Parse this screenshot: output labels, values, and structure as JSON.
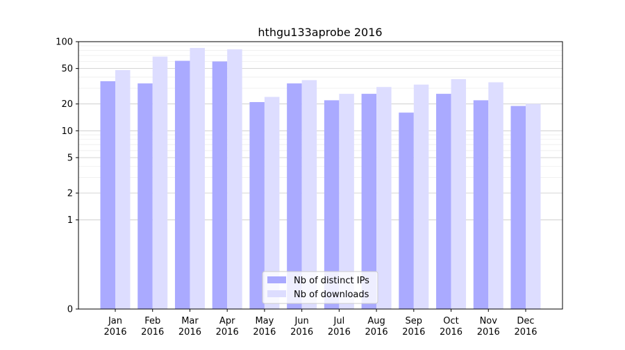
{
  "chart_data": {
    "type": "bar",
    "title": "hthgu133aprobe 2016",
    "xlabel": "",
    "ylabel": "",
    "y_scale": "symlog",
    "ylim": [
      0,
      100
    ],
    "y_ticks": [
      0,
      1,
      2,
      5,
      10,
      20,
      50,
      100
    ],
    "y_tick_labels": [
      "0",
      "1",
      "2",
      "5",
      "10",
      "20",
      "50",
      "100"
    ],
    "grid": "horizontal",
    "legend_position": "bottom-center",
    "categories": [
      "Jan\n2016",
      "Feb\n2016",
      "Mar\n2016",
      "Apr\n2016",
      "May\n2016",
      "Jun\n2016",
      "Jul\n2016",
      "Aug\n2016",
      "Sep\n2016",
      "Oct\n2016",
      "Nov\n2016",
      "Dec\n2016"
    ],
    "series": [
      {
        "name": "Nb of distinct IPs",
        "color": "#aaaaff",
        "values": [
          36,
          34,
          61,
          60,
          21,
          34,
          22,
          26,
          16,
          26,
          22,
          19
        ]
      },
      {
        "name": "Nb of downloads",
        "color": "#ddddff",
        "values": [
          48,
          68,
          85,
          82,
          24,
          37,
          26,
          31,
          33,
          38,
          35,
          20
        ]
      }
    ]
  }
}
